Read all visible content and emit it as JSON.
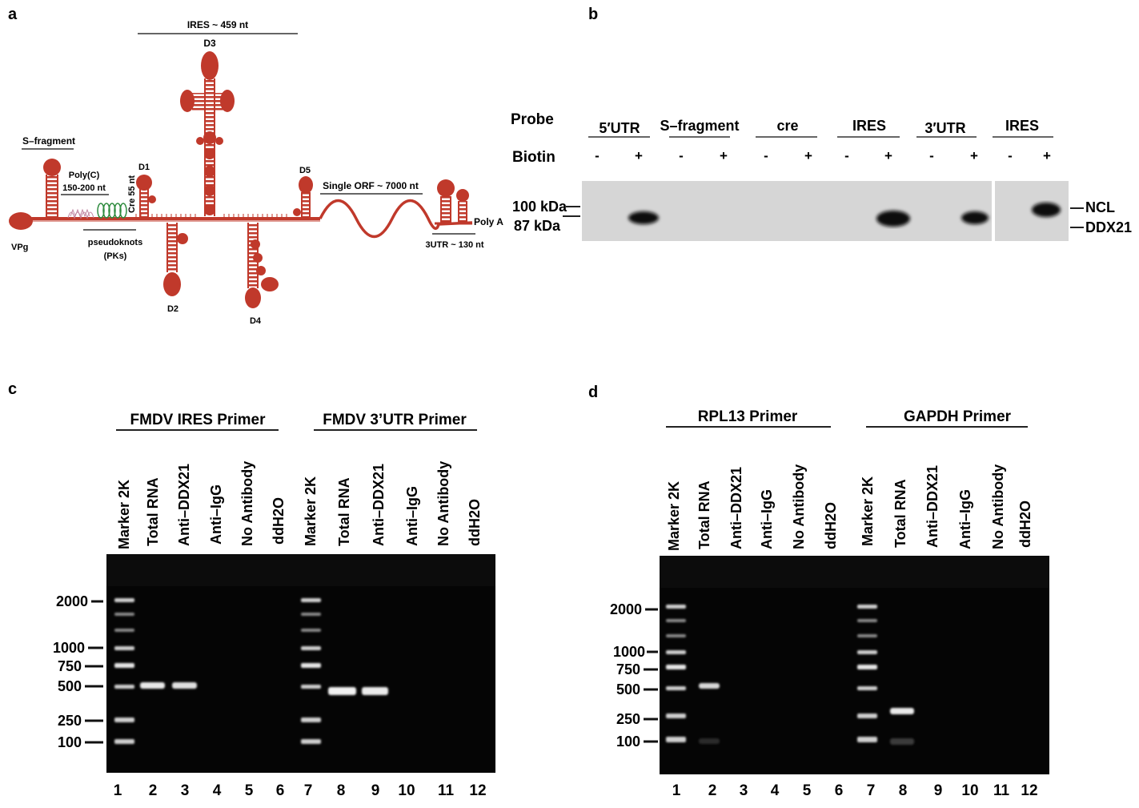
{
  "panels": {
    "a": "a",
    "b": "b",
    "c": "c",
    "d": "d"
  },
  "panel_a": {
    "ires": "IRES ~ 459 nt",
    "d3": "D3",
    "s_fragment": "S–fragment",
    "polyc_1": "Poly(C)",
    "polyc_2": "150-200 nt",
    "cre": "Cre 55 nt",
    "d1": "D1",
    "d5": "D5",
    "orf": "Single ORF ~ 7000 nt",
    "polya": "Poly A",
    "vpg": "VPg",
    "pk_1": "pseudoknots",
    "pk_2": "(PKs)",
    "d2": "D2",
    "d4": "D4",
    "utr3": "3UTR ~ 130 nt",
    "colors": {
      "rna": "#c0392b",
      "pk": "#2e8b3e"
    }
  },
  "panel_b": {
    "probe_label": "Probe",
    "biotin_label": "Biotin",
    "probes": [
      "5′UTR",
      "S–fragment",
      "cre",
      "IRES",
      "3′UTR",
      "IRES"
    ],
    "biotin": [
      "-",
      "+",
      "-",
      "+",
      "-",
      "+",
      "-",
      "+",
      "-",
      "+",
      "-",
      "+"
    ],
    "markers": [
      "100 kDa",
      "87 kDa"
    ],
    "band_labels": [
      "NCL",
      "DDX21"
    ]
  },
  "panel_c": {
    "primer_1": "FMDV IRES Primer",
    "primer_2": "FMDV 3’UTR Primer",
    "lanes": [
      "Marker 2K",
      "Total RNA",
      "Anti–DDX21",
      "Anti–IgG",
      "No Antibody",
      "ddH2O",
      "Marker 2K",
      "Total RNA",
      "Anti–DDX21",
      "Anti–IgG",
      "No Antibody",
      "ddH2O"
    ],
    "ladder": [
      "2000",
      "1000",
      "750",
      "500",
      "250",
      "100"
    ],
    "lane_numbers": [
      "1",
      "2",
      "3",
      "4",
      "5",
      "6",
      "7",
      "8",
      "9",
      "10",
      "11",
      "12"
    ]
  },
  "panel_d": {
    "primer_1": "RPL13  Primer",
    "primer_2": "GAPDH  Primer",
    "lanes": [
      "Marker 2K",
      "Total RNA",
      "Anti–DDX21",
      "Anti–IgG",
      "No Antibody",
      "ddH2O",
      "Marker 2K",
      "Total RNA",
      "Anti–DDX21",
      "Anti–IgG",
      "No Antibody",
      "ddH2O"
    ],
    "ladder": [
      "2000",
      "1000",
      "750",
      "500",
      "250",
      "100"
    ],
    "lane_numbers": [
      "1",
      "2",
      "3",
      "4",
      "5",
      "6",
      "7",
      "8",
      "9",
      "10",
      "11",
      "12"
    ]
  }
}
